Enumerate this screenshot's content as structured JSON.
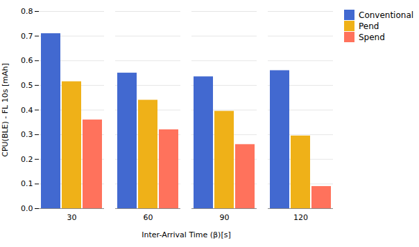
{
  "chart_data": {
    "type": "bar",
    "xlabel": "Inter-Arrival Time (β)[s]",
    "ylabel": "CPU(BLE) - FL 10s [mAh]",
    "categories": [
      "30",
      "60",
      "90",
      "120"
    ],
    "series": [
      {
        "name": "Conventional",
        "values": [
          0.71,
          0.55,
          0.535,
          0.56
        ]
      },
      {
        "name": "Pend",
        "values": [
          0.515,
          0.44,
          0.395,
          0.295
        ]
      },
      {
        "name": "Spend",
        "values": [
          0.36,
          0.32,
          0.26,
          0.09
        ]
      }
    ],
    "ylim": [
      0,
      0.8
    ],
    "yticks": [
      {
        "value": 0,
        "label": "0.0"
      },
      0.1,
      0.2,
      0.3,
      0.4,
      0.5,
      0.6,
      0.7,
      0.8
    ],
    "grid": true,
    "legend": "upper right"
  }
}
